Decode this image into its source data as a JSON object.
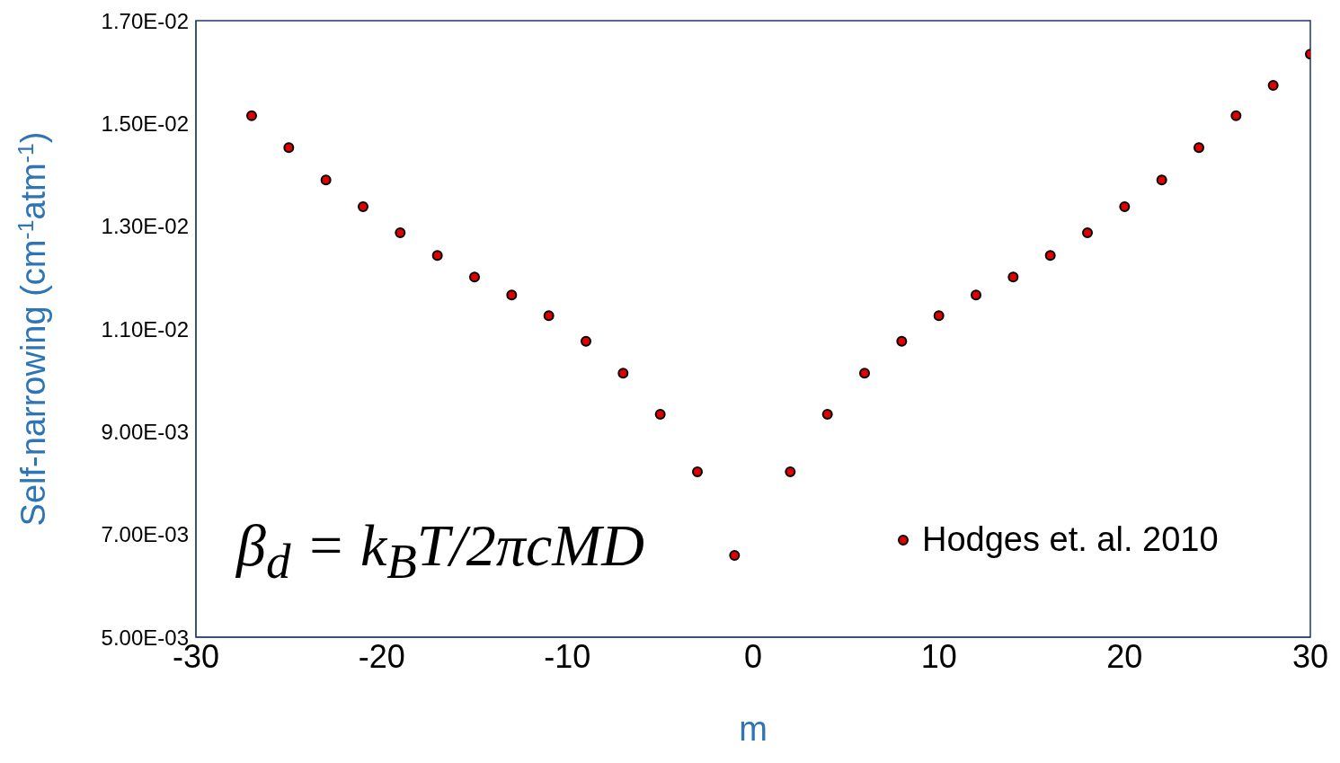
{
  "chart_data": {
    "type": "scatter",
    "xlabel": "m",
    "ylabel": "Self-narrowing  (cm$^{-1}$atm$^{-1}$)",
    "series": [
      {
        "name": "Hodges et. al. 2010",
        "color": "#e00000",
        "x": [
          -27,
          -25,
          -23,
          -21,
          -19,
          -17,
          -15,
          -13,
          -11,
          -9,
          -7,
          -5,
          -3,
          -1,
          2,
          4,
          6,
          8,
          10,
          12,
          14,
          16,
          18,
          20,
          22,
          24,
          26,
          28,
          30
        ],
        "values": [
          0.01515,
          0.01453,
          0.0139,
          0.01338,
          0.01287,
          0.01243,
          0.01201,
          0.01166,
          0.01126,
          0.01076,
          0.01014,
          0.00934,
          0.00822,
          0.00659,
          0.00822,
          0.00934,
          0.01014,
          0.01076,
          0.01126,
          0.01166,
          0.01201,
          0.01243,
          0.01287,
          0.01338,
          0.0139,
          0.01453,
          0.01515,
          0.01574,
          0.01635
        ]
      }
    ],
    "xlim": [
      -30,
      30
    ],
    "xticks": [
      -30,
      -20,
      -10,
      0,
      10,
      20,
      30
    ],
    "ylim": [
      0.005,
      0.017
    ],
    "yticks": [
      {
        "value": 0.005,
        "label": "5.00E-03"
      },
      {
        "value": 0.007,
        "label": "7.00E-03"
      },
      {
        "value": 0.009,
        "label": "9.00E-03"
      },
      {
        "value": 0.011,
        "label": "1.10E-02"
      },
      {
        "value": 0.013,
        "label": "1.30E-02"
      },
      {
        "value": 0.015,
        "label": "1.50E-02"
      },
      {
        "value": 0.017,
        "label": "1.70E-02"
      }
    ],
    "annotations": [
      "β$_{d}$ = k$_{B}$T/2πcMD"
    ],
    "legend": "bottom right",
    "marker": "circle",
    "grid": false
  }
}
